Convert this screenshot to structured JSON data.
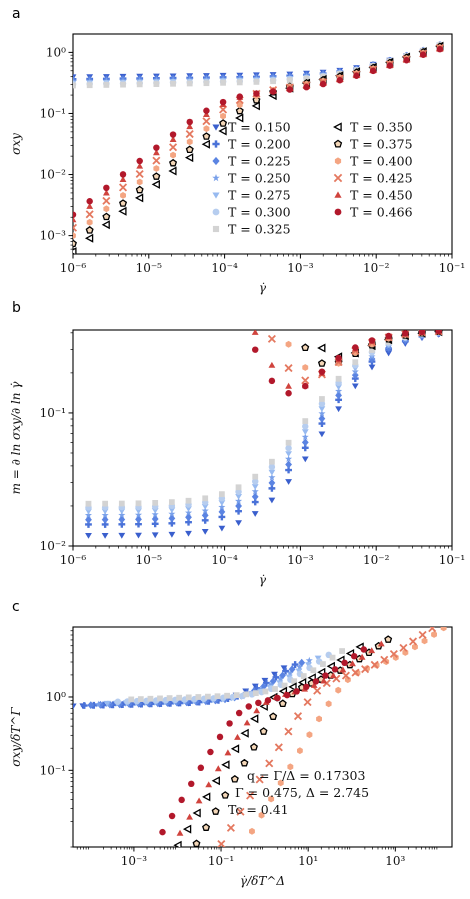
{
  "chart_data": [
    {
      "panel": "a",
      "type": "scatter",
      "xscale": "log",
      "yscale": "log",
      "xlim": [
        1e-06,
        0.1
      ],
      "ylim": [
        0.0005,
        2.0
      ],
      "xlabel": "γ̇",
      "ylabel": "σxy",
      "xticks": [
        1e-06,
        1e-05,
        0.0001,
        0.001,
        0.01,
        0.1
      ],
      "xtick_labels": [
        "10⁻⁶",
        "10⁻⁵",
        "10⁻⁴",
        "10⁻³",
        "10⁻²",
        "10⁻¹"
      ],
      "yticks": [
        0.001,
        0.01,
        0.1,
        1
      ],
      "ytick_labels": [
        "10⁻³",
        "10⁻²",
        "10⁻¹",
        "10⁰"
      ],
      "legend_placement": "lower-right",
      "legend": [
        "T = 0.150",
        "T = 0.200",
        "T = 0.225",
        "T = 0.250",
        "T = 0.275",
        "T = 0.300",
        "T = 0.325",
        "T = 0.350",
        "T = 0.375",
        "T = 0.400",
        "T = 0.425",
        "T = 0.450",
        "T = 0.466"
      ]
    },
    {
      "panel": "b",
      "type": "scatter",
      "xscale": "log",
      "yscale": "log",
      "xlim": [
        1e-06,
        0.1
      ],
      "ylim": [
        0.01,
        0.42
      ],
      "xlabel": "γ̇",
      "ylabel": "m = ∂ ln σxy/∂ ln γ̇",
      "xticks": [
        1e-06,
        1e-05,
        0.0001,
        0.001,
        0.01,
        0.1
      ],
      "xtick_labels": [
        "10⁻⁶",
        "10⁻⁵",
        "10⁻⁴",
        "10⁻³",
        "10⁻²",
        "10⁻¹"
      ],
      "yticks": [
        0.01,
        0.1
      ],
      "ytick_labels": [
        "10⁻²",
        "10⁻¹"
      ]
    },
    {
      "panel": "c",
      "type": "scatter",
      "xscale": "log",
      "yscale": "log",
      "xlim": [
        4e-05,
        20000
      ],
      "ylim": [
        0.009,
        9
      ],
      "xlabel": "γ̇/δT^Δ",
      "ylabel": "σxy/δT^Γ",
      "xticks": [
        0.001,
        0.1,
        10.0,
        1000.0
      ],
      "xtick_labels": [
        "10⁻³",
        "10⁻¹",
        "10¹",
        "10³"
      ],
      "yticks": [
        0.1,
        1
      ],
      "ytick_labels": [
        "10⁻¹",
        "10⁰"
      ],
      "annotations": [
        "q = Γ/Δ = 0.17303",
        "Γ = 0.475, Δ = 2.745",
        "Tc = 0.41"
      ]
    }
  ],
  "series": [
    {
      "T": 0.15,
      "marker": "tri-down",
      "color": "#3a5fcd",
      "edge": ""
    },
    {
      "T": 0.2,
      "marker": "plus",
      "color": "#4a72d8",
      "edge": ""
    },
    {
      "T": 0.225,
      "marker": "diamond",
      "color": "#5b84e2",
      "edge": ""
    },
    {
      "T": 0.25,
      "marker": "star",
      "color": "#79a0ea",
      "edge": ""
    },
    {
      "T": 0.275,
      "marker": "tri-down",
      "color": "#97baf0",
      "edge": ""
    },
    {
      "T": 0.3,
      "marker": "circle",
      "color": "#b6cdef",
      "edge": ""
    },
    {
      "T": 0.325,
      "marker": "square",
      "color": "#d3d3d3",
      "edge": ""
    },
    {
      "T": 0.35,
      "marker": "tri-left",
      "color": "#ffffff",
      "edge": "#000000"
    },
    {
      "T": 0.375,
      "marker": "pentagon",
      "color": "#f4d7b8",
      "edge": "#000000"
    },
    {
      "T": 0.4,
      "marker": "hexagon",
      "color": "#f4a582",
      "edge": ""
    },
    {
      "T": 0.425,
      "marker": "x",
      "color": "#e4785f",
      "edge": ""
    },
    {
      "T": 0.45,
      "marker": "tri-up",
      "color": "#d0433d",
      "edge": ""
    },
    {
      "T": 0.466,
      "marker": "circle",
      "color": "#b2182b",
      "edge": ""
    }
  ],
  "legend_columns": [
    [
      0,
      1,
      2,
      3,
      4,
      5,
      6
    ],
    [
      7,
      8,
      9,
      10,
      11,
      12
    ]
  ]
}
